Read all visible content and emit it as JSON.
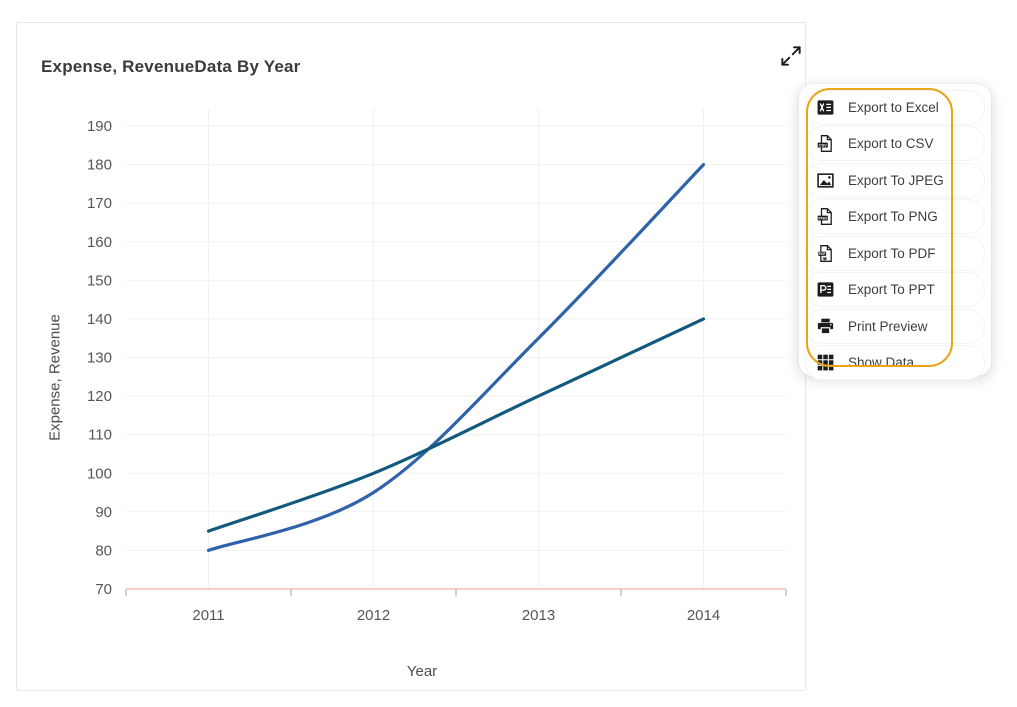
{
  "card": {
    "title": "Expense, RevenueData By Year"
  },
  "chart_data": {
    "type": "line",
    "title": "Expense, RevenueData By Year",
    "categories": [
      "2011",
      "2012",
      "2013",
      "2014"
    ],
    "series": [
      {
        "name": "Revenue",
        "color": "#2f62a8",
        "values": [
          80,
          95,
          135,
          180
        ]
      },
      {
        "name": "Expense",
        "color": "#13597e",
        "values": [
          85,
          100,
          120,
          140
        ]
      }
    ],
    "xlabel": "Year",
    "ylabel": "Expense, Revenue",
    "ylim": [
      70,
      190
    ],
    "ytick_step": 10,
    "grid": true,
    "smooth": true,
    "legend": "none",
    "colors": {
      "gridline": "#f1f1f1",
      "axis_line": "#f6bcb4",
      "tick": "#a3a3a3",
      "tick_label": "#565656"
    }
  },
  "menu": {
    "items": [
      {
        "label": "Export to Excel",
        "icon": "excel-icon"
      },
      {
        "label": "Export to CSV",
        "icon": "csv-icon"
      },
      {
        "label": "Export To JPEG",
        "icon": "jpeg-icon"
      },
      {
        "label": "Export To PNG",
        "icon": "png-icon"
      },
      {
        "label": "Export To PDF",
        "icon": "pdf-icon"
      },
      {
        "label": "Export To PPT",
        "icon": "ppt-icon"
      },
      {
        "label": "Print Preview",
        "icon": "printer-icon"
      },
      {
        "label": "Show Data",
        "icon": "grid-icon"
      }
    ],
    "highlight_color": "#e7a519"
  }
}
